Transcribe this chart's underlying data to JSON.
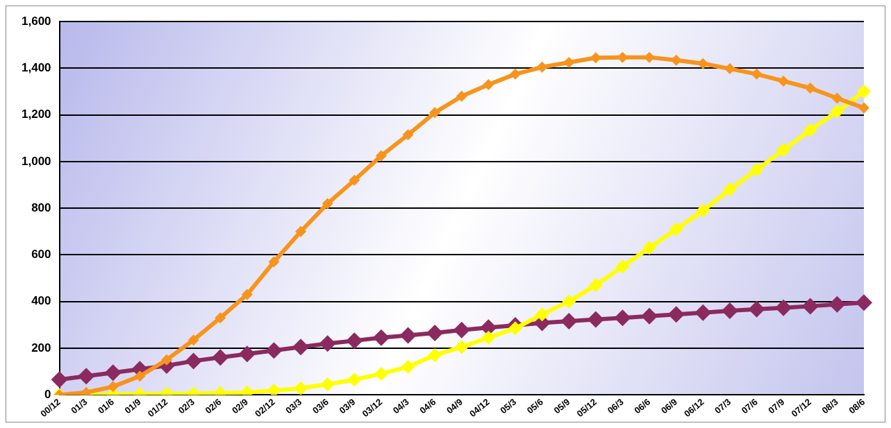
{
  "chart_data": {
    "type": "line",
    "categories": [
      "00/12",
      "01/3",
      "01/6",
      "01/9",
      "01/12",
      "02/3",
      "02/6",
      "02/9",
      "02/12",
      "03/3",
      "03/6",
      "03/9",
      "03/12",
      "04/3",
      "04/6",
      "04/9",
      "04/12",
      "05/3",
      "05/6",
      "05/9",
      "05/12",
      "06/3",
      "06/6",
      "06/9",
      "06/12",
      "07/3",
      "07/6",
      "07/9",
      "07/12",
      "08/3",
      "08/6"
    ],
    "series": [
      {
        "color": "#f7941d",
        "values": [
          0,
          10,
          35,
          80,
          150,
          235,
          330,
          430,
          570,
          700,
          820,
          920,
          1025,
          1115,
          1210,
          1280,
          1330,
          1375,
          1405,
          1425,
          1445,
          1447,
          1447,
          1435,
          1420,
          1398,
          1375,
          1345,
          1315,
          1272,
          1230
        ]
      },
      {
        "color": "#ffff00",
        "values": [
          0,
          0,
          2,
          3,
          4,
          5,
          7,
          10,
          18,
          28,
          45,
          65,
          90,
          120,
          170,
          205,
          245,
          285,
          345,
          400,
          470,
          550,
          630,
          710,
          790,
          880,
          965,
          1050,
          1135,
          1215,
          1300
        ]
      },
      {
        "color": "#8b2a5f",
        "values": [
          65,
          80,
          95,
          110,
          125,
          145,
          160,
          175,
          190,
          205,
          220,
          232,
          245,
          255,
          265,
          278,
          288,
          298,
          308,
          316,
          323,
          330,
          337,
          345,
          352,
          360,
          367,
          373,
          380,
          388,
          395
        ]
      }
    ],
    "ylim": [
      0,
      1600
    ],
    "yticks": [
      0,
      200,
      400,
      600,
      800,
      {
        "value": 1000,
        "label": "1,000"
      },
      {
        "value": 1200,
        "label": "1,200"
      },
      {
        "value": 1400,
        "label": "1,400"
      },
      {
        "value": 1600,
        "label": "1,600"
      }
    ],
    "grid": "y",
    "legend": false,
    "marker": "diamond",
    "line_style": "solid"
  }
}
